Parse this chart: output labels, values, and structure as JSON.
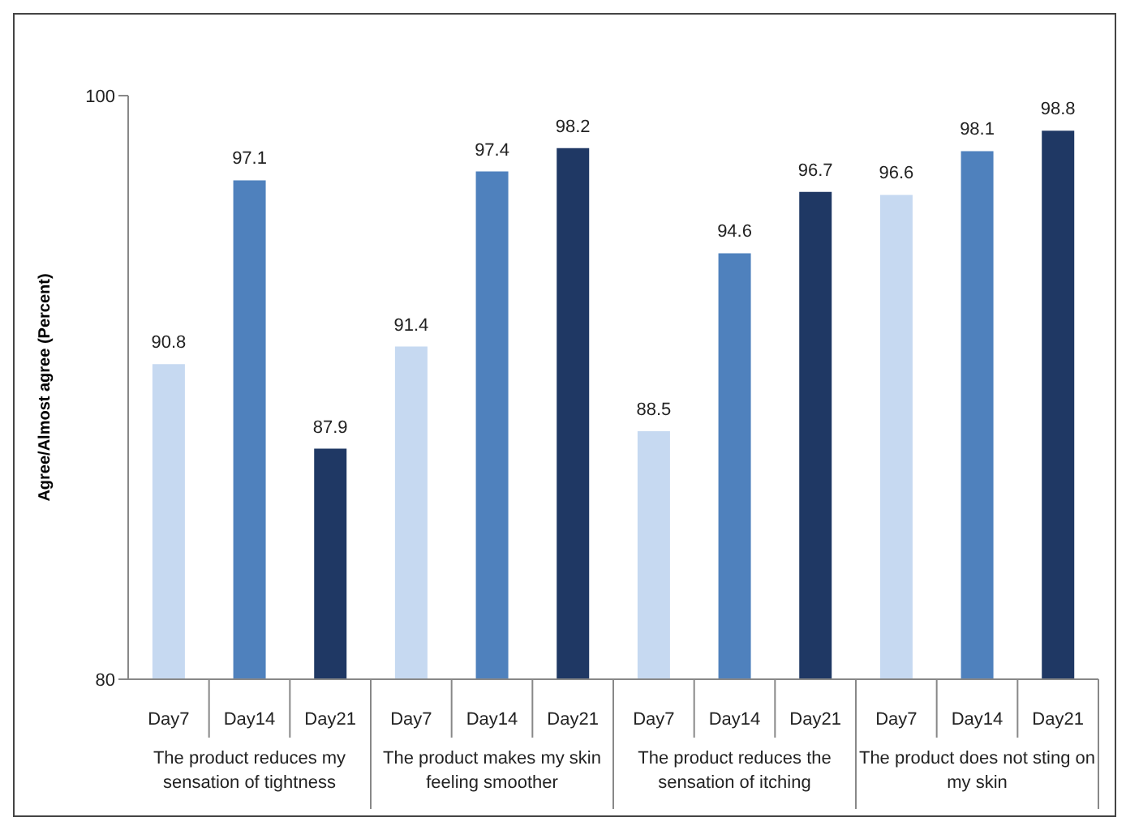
{
  "chart_data": {
    "type": "bar",
    "ylabel": "Agree/Almost agree (Percent)",
    "categories": [
      "Day7",
      "Day14",
      "Day21",
      "Day7",
      "Day14",
      "Day21",
      "Day7",
      "Day14",
      "Day21",
      "Day7",
      "Day14",
      "Day21"
    ],
    "values": [
      90.8,
      97.1,
      87.9,
      91.4,
      97.4,
      98.2,
      88.5,
      94.6,
      96.7,
      96.6,
      98.1,
      98.8
    ],
    "colors": [
      "#c6d9f1",
      "#4f81bd",
      "#1f3864",
      "#c6d9f1",
      "#4f81bd",
      "#1f3864",
      "#c6d9f1",
      "#4f81bd",
      "#1f3864",
      "#c6d9f1",
      "#4f81bd",
      "#1f3864"
    ],
    "ylim": [
      80,
      100
    ],
    "yticks": [
      80,
      100
    ],
    "data_labels": true,
    "grid": false,
    "legend": false,
    "annotations": [
      "The product reduces my sensation of tightness",
      "The product makes my skin feeling smoother",
      "The product reduces the sensation of itching",
      "The product does not sting on my skin"
    ]
  }
}
